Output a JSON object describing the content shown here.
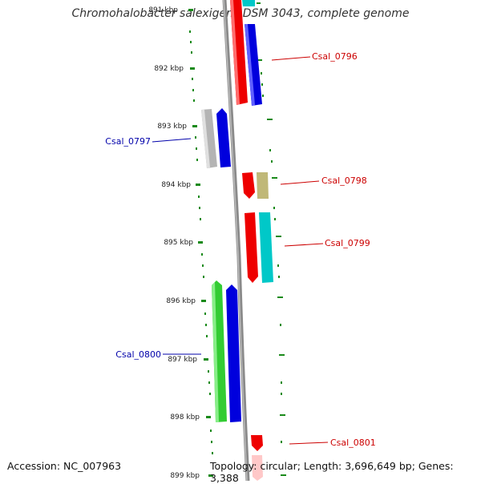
{
  "title": "Chromohalobacter salexigens DSM 3043, complete genome",
  "accession": "Accession: NC_007963",
  "topology": "Topology: circular; Length: 3,696,649 bp; Genes: 3,388",
  "kbp_labels": [
    "891 kbp",
    "892 kbp",
    "893 kbp",
    "894 kbp",
    "895 kbp",
    "896 kbp",
    "897 kbp",
    "898 kbp",
    "899 kbp"
  ],
  "locus_tags": {
    "csal_0796": "Csal_0796",
    "csal_0797": "Csal_0797",
    "csal_0798": "Csal_0798",
    "csal_0799": "Csal_0799",
    "csal_0800": "Csal_0800",
    "csal_0801": "Csal_0801"
  },
  "colors": {
    "forward_label": "#cc0000",
    "reverse_label": "#0000aa",
    "tick": "#1a8a1a",
    "backbone": "#8a8a8a",
    "red": "#ee0000",
    "blue": "#0000dd",
    "cyan": "#00c8c8",
    "gray": "#b4b4b4",
    "olive": "#c0b878",
    "green": "#33cc33"
  }
}
